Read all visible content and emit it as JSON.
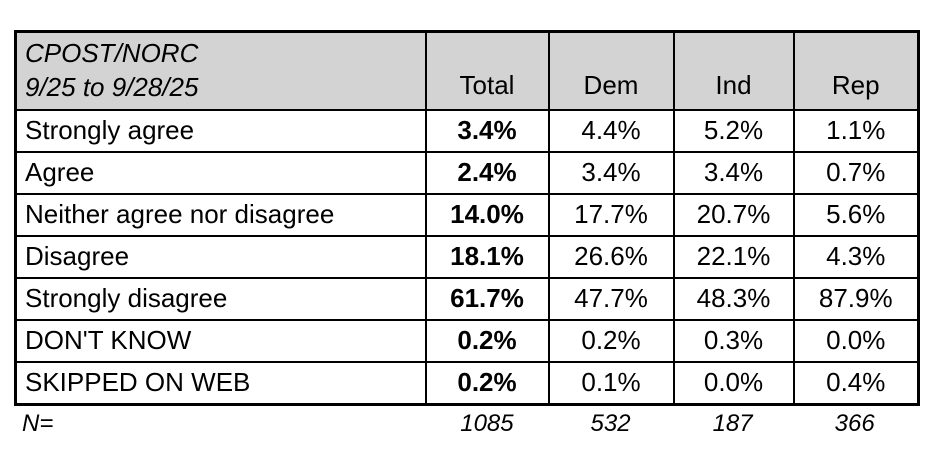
{
  "table": {
    "source": {
      "line1": "CPOST/NORC",
      "line2": "9/25 to 9/28/25"
    },
    "columns": [
      "Total",
      "Dem",
      "Ind",
      "Rep"
    ],
    "rows": [
      {
        "label": "Strongly agree",
        "values": [
          "3.4%",
          "4.4%",
          "5.2%",
          "1.1%"
        ]
      },
      {
        "label": "Agree",
        "values": [
          "2.4%",
          "3.4%",
          "3.4%",
          "0.7%"
        ]
      },
      {
        "label": "Neither agree nor disagree",
        "values": [
          "14.0%",
          "17.7%",
          "20.7%",
          "5.6%"
        ]
      },
      {
        "label": "Disagree",
        "values": [
          "18.1%",
          "26.6%",
          "22.1%",
          "4.3%"
        ]
      },
      {
        "label": "Strongly disagree",
        "values": [
          "61.7%",
          "47.7%",
          "48.3%",
          "87.9%"
        ]
      },
      {
        "label": "DON'T KNOW",
        "values": [
          "0.2%",
          "0.2%",
          "0.3%",
          "0.0%"
        ]
      },
      {
        "label": "SKIPPED ON WEB",
        "values": [
          "0.2%",
          "0.1%",
          "0.0%",
          "0.4%"
        ]
      }
    ],
    "n": {
      "label": "N=",
      "values": [
        "1085",
        "532",
        "187",
        "366"
      ]
    },
    "colors": {
      "header_bg": "#d3d3d3",
      "border": "#000000",
      "background": "#ffffff"
    }
  }
}
